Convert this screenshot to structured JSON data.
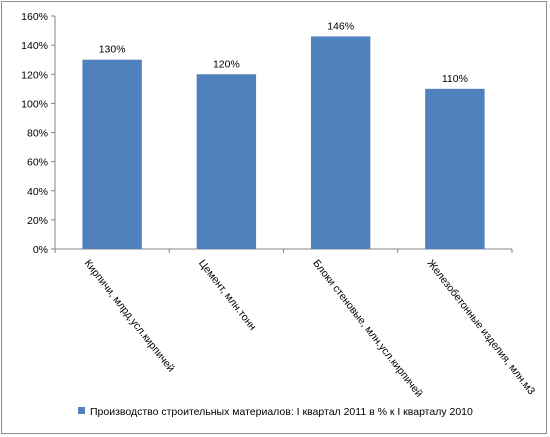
{
  "chart_data": {
    "type": "bar",
    "categories": [
      "Кирпичи, млрд.усл.кирпичей",
      "Цемент, млн.тонн",
      "Блоки стеновые, млн.усл.кирпичей",
      "Железобетонные изделия, млн.м3"
    ],
    "series": [
      {
        "name": "Производство строительных материалов: I квартал 2011 в % к I кварталу 2010",
        "values": [
          130,
          120,
          146,
          110
        ],
        "labels": [
          "130%",
          "120%",
          "146%",
          "110%"
        ]
      }
    ],
    "ylim": [
      0,
      160
    ],
    "yticks": [
      0,
      20,
      40,
      60,
      80,
      100,
      120,
      140,
      160
    ],
    "ytick_labels": [
      "0%",
      "20%",
      "40%",
      "60%",
      "80%",
      "100%",
      "120%",
      "140%",
      "160%"
    ],
    "grid": false,
    "legend_position": "bottom",
    "colors": {
      "bar": "#4f81bd",
      "axis": "#868686"
    }
  }
}
